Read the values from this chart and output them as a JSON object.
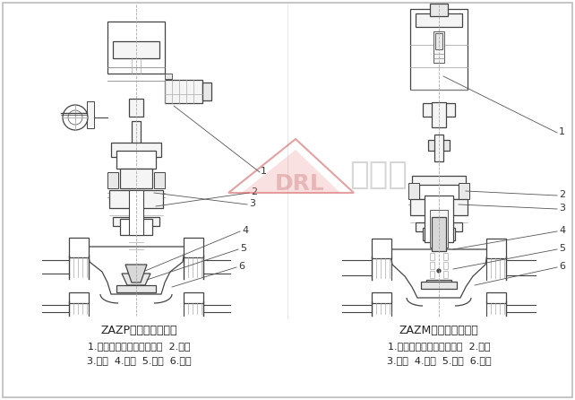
{
  "bg_color": "#ffffff",
  "line_color": "#444444",
  "fill_white": "#ffffff",
  "fill_light": "#f5f5f5",
  "fill_mid": "#e8e8e8",
  "fill_dark": "#d8d8d8",
  "fill_hatch": "#cccccc",
  "title_left": "ZAZP电动单座调节阀",
  "title_right": "ZAZM电动套筒调节阀",
  "labels_left_line1": "1.电动执行机构（普通型）  2.阀盖",
  "labels_left_line2": "3.阀杆  4.阀芯  5.阀座  6.阀体",
  "labels_right_line1": "1.电动执行机构（电子式）  2.阀盖",
  "labels_right_line2": "3.阀杆  4.阀塞  5.套筒  6.阀体",
  "watermark_text": "杜伯瑞",
  "watermark_color": "#cccccc",
  "fig_width": 6.42,
  "fig_height": 4.46,
  "dpi": 100
}
